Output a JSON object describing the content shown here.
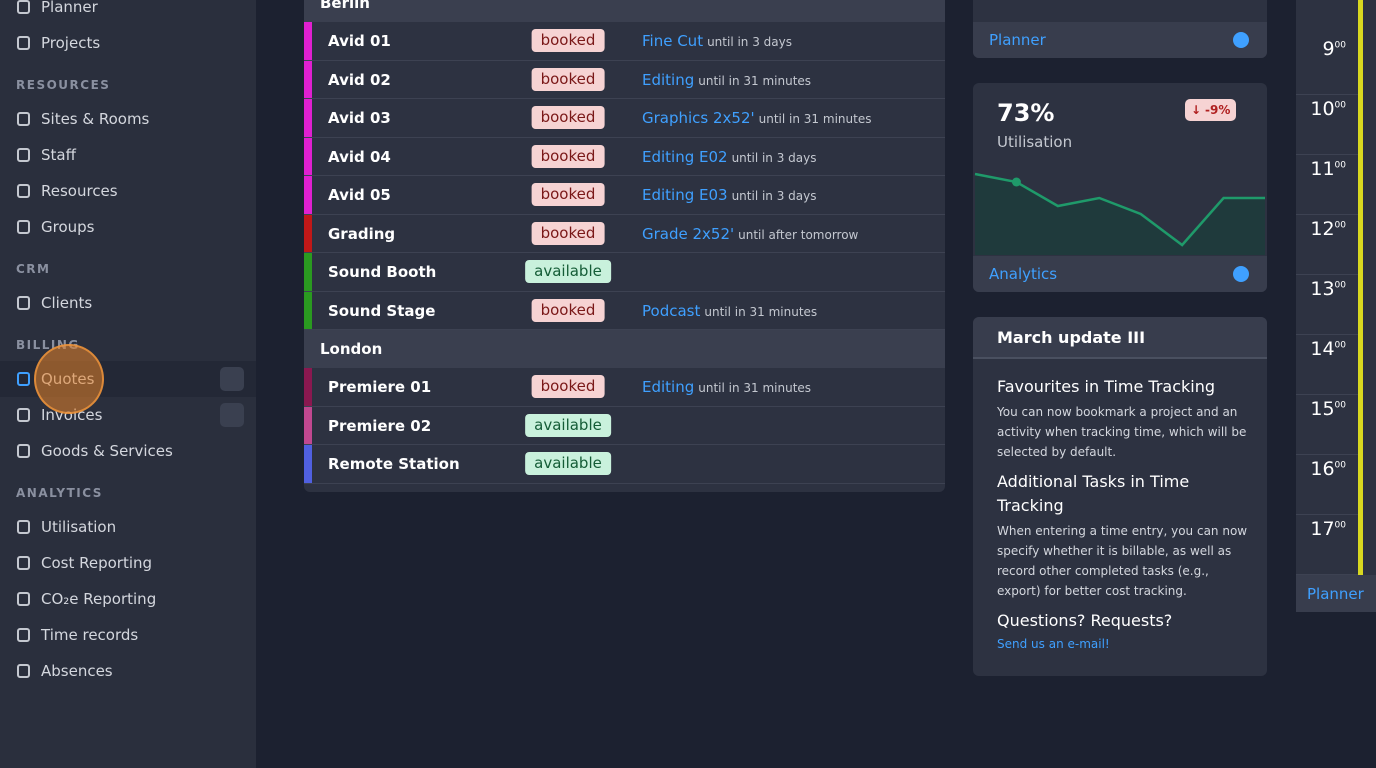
{
  "sidebar": {
    "top_items": [
      "Planner",
      "Projects"
    ],
    "sections": [
      {
        "title": "RESOURCES",
        "items": [
          "Sites & Rooms",
          "Staff",
          "Resources",
          "Groups"
        ]
      },
      {
        "title": "CRM",
        "items": [
          "Clients"
        ]
      },
      {
        "title": "BILLING",
        "items": [
          "Quotes",
          "Invoices",
          "Goods & Services"
        ]
      },
      {
        "title": "ANALYTICS",
        "items": [
          "Utilisation",
          "Cost Reporting",
          "CO₂e Reporting",
          "Time records",
          "Absences"
        ]
      }
    ]
  },
  "rooms": {
    "groups": [
      {
        "name": "Berlin",
        "rows": [
          {
            "name": "Avid 01",
            "color": "#e020d0",
            "status": "booked",
            "project": "Fine Cut",
            "until": "until in 3 days"
          },
          {
            "name": "Avid 02",
            "color": "#e020d0",
            "status": "booked",
            "project": "Editing",
            "until": "until in 31 minutes"
          },
          {
            "name": "Avid 03",
            "color": "#e020d0",
            "status": "booked",
            "project": "Graphics 2x52'",
            "until": "until in 31 minutes"
          },
          {
            "name": "Avid 04",
            "color": "#e020d0",
            "status": "booked",
            "project": "Editing E02",
            "until": "until in 3 days"
          },
          {
            "name": "Avid 05",
            "color": "#e020d0",
            "status": "booked",
            "project": "Editing E03",
            "until": "until in 3 days"
          },
          {
            "name": "Grading",
            "color": "#c01818",
            "status": "booked",
            "project": "Grade 2x52'",
            "until": "until after tomorrow"
          },
          {
            "name": "Sound Booth",
            "color": "#2a9a20",
            "status": "available"
          },
          {
            "name": "Sound Stage",
            "color": "#2a9a20",
            "status": "booked",
            "project": "Podcast",
            "until": "until in 31 minutes"
          }
        ]
      },
      {
        "name": "London",
        "rows": [
          {
            "name": "Premiere 01",
            "color": "#8a1850",
            "status": "booked",
            "project": "Editing",
            "until": "until in 31 minutes"
          },
          {
            "name": "Premiere 02",
            "color": "#c04890",
            "status": "available"
          },
          {
            "name": "Remote Station",
            "color": "#5060e0",
            "status": "available"
          }
        ]
      }
    ]
  },
  "planner_card": {
    "link": "Planner"
  },
  "utilisation_card": {
    "value": "73%",
    "label": "Utilisation",
    "change": "-9%",
    "link": "Analytics",
    "sparkline": [
      79,
      71,
      47,
      55,
      39,
      8,
      55,
      55
    ]
  },
  "news": {
    "title": "March update III",
    "sections": [
      {
        "heading": "Favourites in Time Tracking",
        "body": "You can now bookmark a project and an activity when tracking time, which will be selected by default."
      },
      {
        "heading": "Additional Tasks in Time Tracking",
        "body": "When entering a time entry, you can now specify whether it is billable, as well as record other completed tasks (e.g., export) for better cost tracking."
      }
    ],
    "questions": "Questions? Requests?",
    "email_link": "Send us an e-mail!"
  },
  "timeline": {
    "hours": [
      "9",
      "10",
      "11",
      "12",
      "13",
      "14",
      "15",
      "16",
      "17"
    ],
    "minutes": "00",
    "link": "Planner"
  }
}
